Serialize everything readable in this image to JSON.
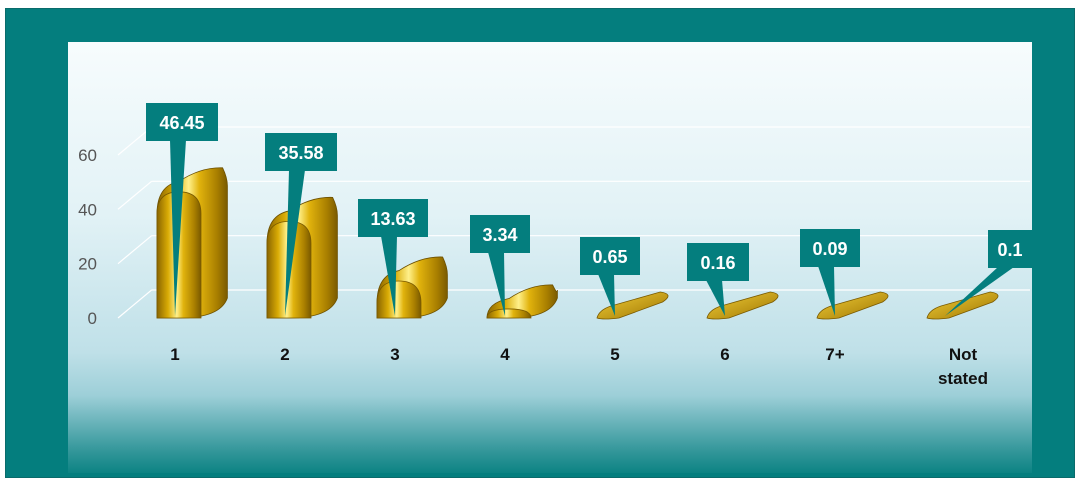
{
  "chart_data": {
    "type": "bar",
    "categories": [
      "1",
      "2",
      "3",
      "4",
      "5",
      "6",
      "7+",
      "Not stated"
    ],
    "values": [
      46.45,
      35.58,
      13.63,
      3.34,
      0.65,
      0.16,
      0.09,
      0.1
    ],
    "value_labels": [
      "46.45",
      "35.58",
      "13.63",
      "3.34",
      "0.65",
      "0.16",
      "0.09",
      "0.1"
    ],
    "yticks": [
      "0",
      "20",
      "40",
      "60"
    ],
    "ylim": [
      0,
      60
    ],
    "grid": true,
    "title": "",
    "xlabel": "",
    "ylabel": ""
  },
  "colors": {
    "frame": "#047e7e",
    "callout": "#047e7e",
    "bar_dark": "#7a5a00",
    "bar_mid": "#d6a700",
    "bar_light": "#fff08a"
  }
}
